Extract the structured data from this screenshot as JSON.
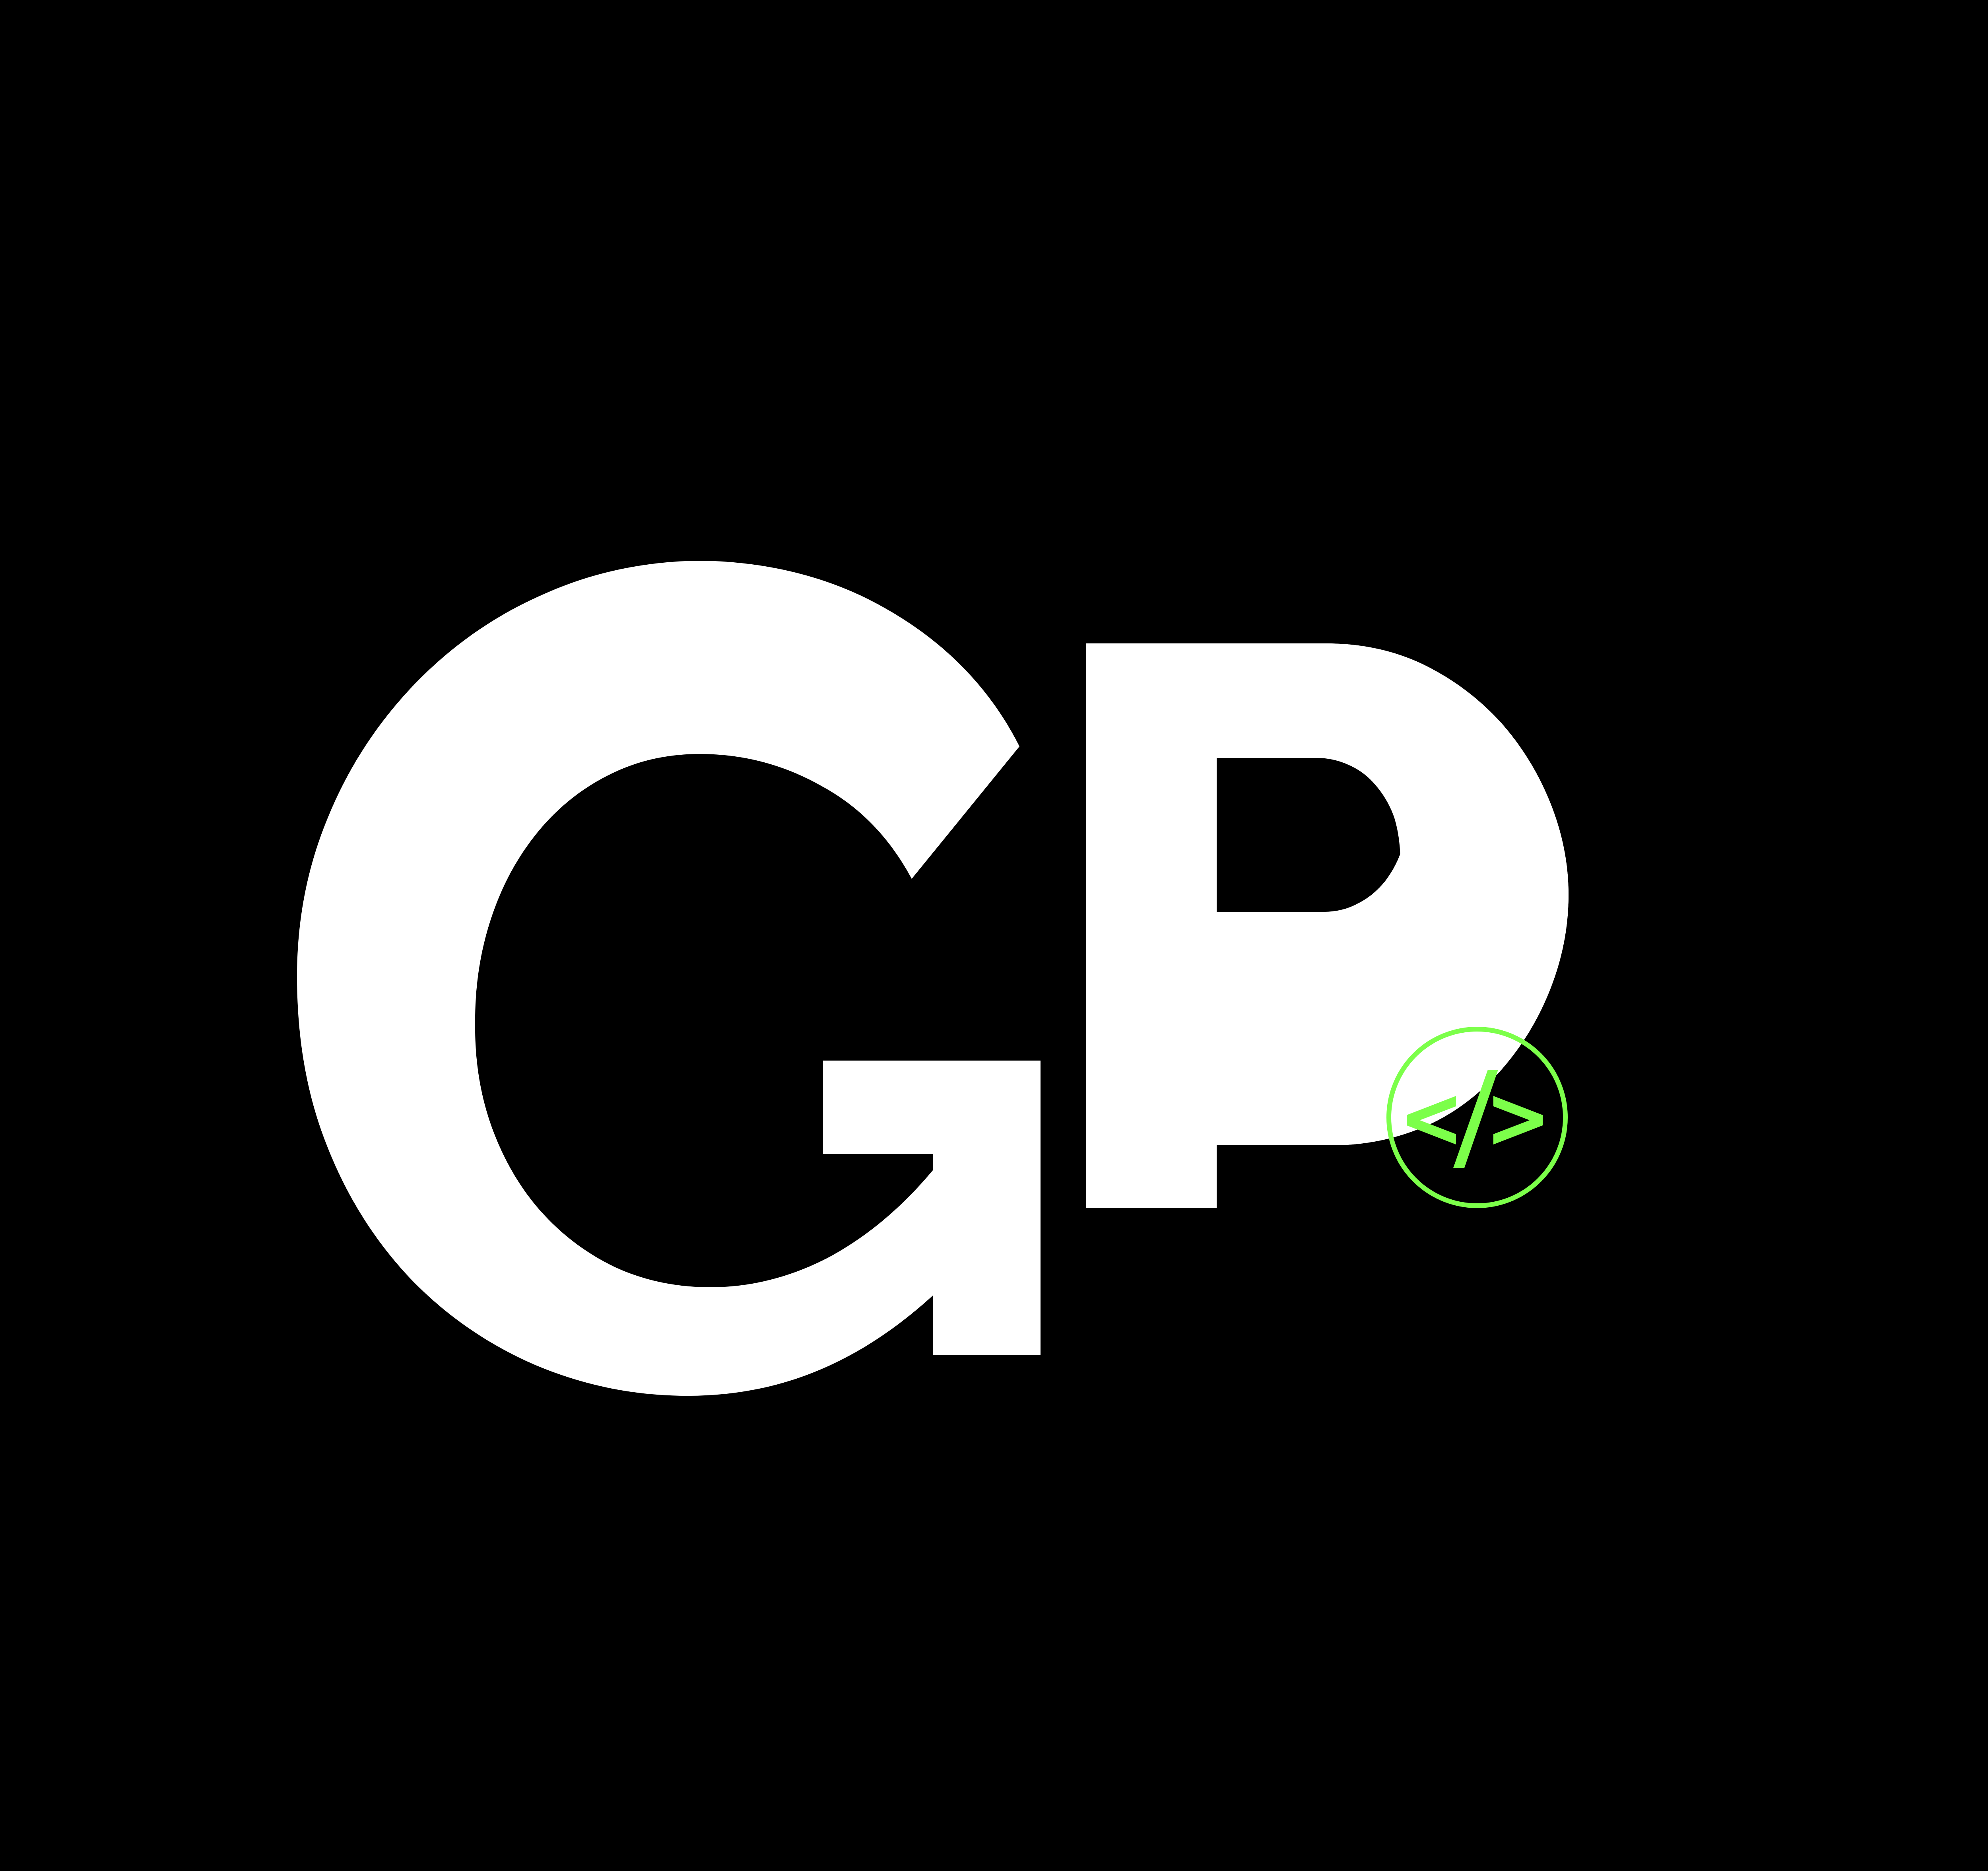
{
  "logo": {
    "letters": "GP",
    "badge_symbol": "</>",
    "badge_icon": "code-icon"
  },
  "colors": {
    "background": "#000000",
    "letters": "#ffffff",
    "accent": "#7cff4a"
  }
}
